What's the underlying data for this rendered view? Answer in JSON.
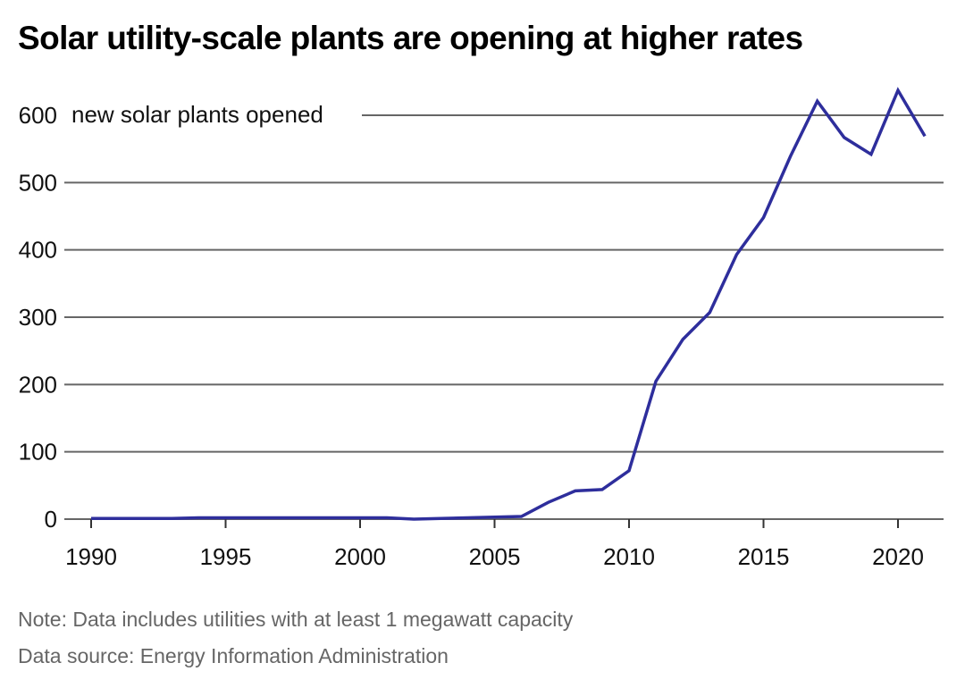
{
  "chart_data": {
    "type": "line",
    "title": "Solar utility-scale plants are opening at higher rates",
    "xlabel": "",
    "ylabel": "",
    "series_label": "new solar plants opened",
    "x": [
      1990,
      1991,
      1992,
      1993,
      1994,
      1995,
      1996,
      1997,
      1998,
      1999,
      2000,
      2001,
      2002,
      2003,
      2004,
      2005,
      2006,
      2007,
      2008,
      2009,
      2010,
      2011,
      2012,
      2013,
      2014,
      2015,
      2016,
      2017,
      2018,
      2019,
      2020,
      2021
    ],
    "series": [
      {
        "name": "new solar plants opened",
        "color": "#2e2e9c",
        "values": [
          1,
          1,
          1,
          1,
          2,
          2,
          2,
          2,
          2,
          2,
          2,
          2,
          0,
          1,
          2,
          3,
          4,
          25,
          42,
          44,
          72,
          205,
          267,
          307,
          393,
          448,
          539,
          621,
          567,
          542,
          637,
          569
        ]
      }
    ],
    "xlim": [
      1990,
      2021
    ],
    "ylim": [
      0,
      600
    ],
    "xticks": [
      1990,
      1995,
      2000,
      2005,
      2010,
      2015,
      2020
    ],
    "yticks": [
      0,
      100,
      200,
      300,
      400,
      500,
      600
    ],
    "grid": true,
    "gridline_color": "#666666",
    "notes": [
      "Note: Data includes utilities with at least 1 megawatt capacity",
      "Data source: Energy Information Administration"
    ]
  }
}
